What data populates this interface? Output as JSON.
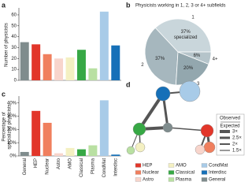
{
  "panel_labels": [
    "a",
    "b",
    "c",
    "d"
  ],
  "chart_data": [
    {
      "type": "bar",
      "ylabel": "Number of physicists",
      "values": [
        35,
        33,
        24,
        20,
        21,
        28,
        11,
        63,
        32
      ],
      "colors": [
        "#7f8c8d",
        "#e2362a",
        "#f07f5e",
        "#f8d5cc",
        "#f4f0c2",
        "#37a845",
        "#b9e0a2",
        "#a8cbe8",
        "#1670b8"
      ],
      "ylim": [
        0,
        65
      ],
      "yticks": [
        0,
        10,
        20,
        30,
        40,
        50,
        60
      ]
    },
    {
      "type": "pie",
      "title": "Physicists working in 1, 2, 3 or 4+ subfields",
      "categories": [
        "1",
        "2",
        "3",
        "4+"
      ],
      "values": [
        37,
        37,
        20,
        6
      ],
      "value_labels": [
        "37%",
        "37%",
        "20%",
        "6%"
      ],
      "annotation": "specialized",
      "colors": [
        "#c9d6db",
        "#a6b7be",
        "#93a7ae",
        "#b5c4ca"
      ]
    },
    {
      "type": "bar",
      "ylabel_lines": [
        "Percentage of",
        "specialized physicists"
      ],
      "categories": [
        "General",
        "HEP",
        "Nuclear",
        "Astro",
        "AMO",
        "Classical",
        "Plasma",
        "CondMat",
        "Interdisc"
      ],
      "values": [
        3,
        34,
        25,
        2,
        6,
        5,
        8,
        42,
        1
      ],
      "colors": [
        "#7f8c8d",
        "#e2362a",
        "#f07f5e",
        "#f8d5cc",
        "#f4f0c2",
        "#37a845",
        "#b9e0a2",
        "#a8cbe8",
        "#1670b8"
      ],
      "ylim": [
        0,
        44
      ],
      "yticks": [
        {
          "value": 0,
          "label": "0%"
        },
        {
          "value": 10,
          "label": "10%"
        },
        {
          "value": 20,
          "label": "20%"
        },
        {
          "value": 30,
          "label": "30%"
        },
        {
          "value": 40,
          "label": "40%"
        }
      ]
    }
  ],
  "network": {
    "legend_title": [
      "Observed",
      "Expected"
    ],
    "weights": [
      "3×",
      "2.5×",
      "2×",
      "1.5×"
    ],
    "groups": [
      {
        "name": "HEP",
        "color": "#e2362a"
      },
      {
        "name": "Nuclear",
        "color": "#f07f5e"
      },
      {
        "name": "Astro",
        "color": "#f8d5cc"
      },
      {
        "name": "AMO",
        "color": "#f4f0c2"
      },
      {
        "name": "Classical",
        "color": "#37a845"
      },
      {
        "name": "Plasma",
        "color": "#b9e0a2"
      },
      {
        "name": "CondMat",
        "color": "#a8cbe8"
      },
      {
        "name": "Interdisc",
        "color": "#1670b8"
      },
      {
        "name": "General",
        "color": "#7f8c8d"
      }
    ]
  }
}
